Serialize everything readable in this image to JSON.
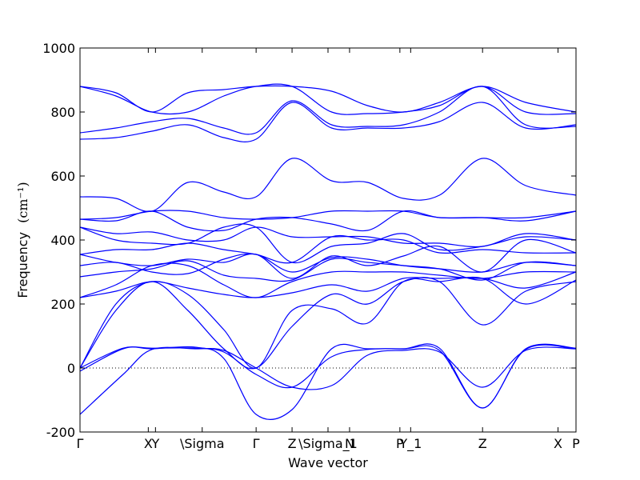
{
  "chart_data": {
    "type": "line",
    "title": "",
    "xlabel": "Wave vector",
    "ylabel": "Frequency",
    "ylabel_unit": "(cm⁻¹)",
    "ylim": [
      -200,
      1000
    ],
    "yticks": [
      -200,
      0,
      200,
      400,
      600,
      800,
      1000
    ],
    "xlim": [
      0,
      6.9
    ],
    "xticks": [
      {
        "pos": 0.0,
        "label": "Γ"
      },
      {
        "pos": 0.95,
        "label": "X"
      },
      {
        "pos": 1.05,
        "label": "Y"
      },
      {
        "pos": 1.7,
        "label": "\\Sigma"
      },
      {
        "pos": 2.45,
        "label": "Γ"
      },
      {
        "pos": 2.95,
        "label": "Z"
      },
      {
        "pos": 3.45,
        "label": "\\Sigma_1"
      },
      {
        "pos": 3.75,
        "label": "N"
      },
      {
        "pos": 4.45,
        "label": "P"
      },
      {
        "pos": 4.6,
        "label": "Y_1"
      },
      {
        "pos": 5.6,
        "label": "Z"
      },
      {
        "pos": 6.65,
        "label": "X"
      },
      {
        "pos": 6.9,
        "label": "P"
      }
    ],
    "zero_line": true,
    "grid": false,
    "line_color": "#0000ff",
    "series": [
      {
        "x": [
          0,
          0.6,
          1.0,
          1.6,
          2.0,
          2.45,
          2.95,
          3.5,
          4.0,
          4.5,
          5.0,
          5.6,
          6.2,
          6.9
        ],
        "y": [
          -145,
          -20,
          58,
          60,
          55,
          0,
          -60,
          -55,
          40,
          55,
          50,
          -60,
          55,
          60
        ]
      },
      {
        "x": [
          0,
          0.6,
          1.0,
          1.6,
          2.0,
          2.45,
          2.95,
          3.5,
          4.0,
          4.5,
          5.0,
          5.6,
          6.2,
          6.9
        ],
        "y": [
          -10,
          60,
          62,
          62,
          50,
          -20,
          -60,
          35,
          58,
          60,
          62,
          -125,
          60,
          62
        ]
      },
      {
        "x": [
          0,
          0.6,
          1.0,
          1.6,
          2.0,
          2.45,
          2.95,
          3.5,
          4.0,
          4.5,
          5.0,
          5.6,
          6.2,
          6.9
        ],
        "y": [
          0,
          62,
          60,
          65,
          30,
          -145,
          -130,
          60,
          60,
          60,
          55,
          -125,
          58,
          60
        ]
      },
      {
        "x": [
          0,
          0.5,
          1.0,
          1.5,
          2.0,
          2.45,
          2.95,
          3.5,
          4.0,
          4.5,
          5.0,
          5.6,
          6.2,
          6.9
        ],
        "y": [
          0,
          180,
          270,
          180,
          60,
          0,
          130,
          230,
          200,
          270,
          270,
          135,
          240,
          270
        ]
      },
      {
        "x": [
          0,
          0.5,
          1.0,
          1.5,
          2.0,
          2.45,
          2.95,
          3.5,
          4.0,
          4.5,
          5.0,
          5.6,
          6.2,
          6.9
        ],
        "y": [
          0,
          200,
          270,
          230,
          120,
          0,
          180,
          185,
          140,
          270,
          270,
          280,
          200,
          275
        ]
      },
      {
        "x": [
          0,
          0.5,
          1.0,
          1.5,
          2.0,
          2.45,
          2.95,
          3.5,
          4.0,
          4.5,
          5.0,
          5.6,
          6.2,
          6.9
        ],
        "y": [
          220,
          240,
          270,
          250,
          230,
          220,
          235,
          260,
          240,
          280,
          280,
          280,
          250,
          300
        ]
      },
      {
        "x": [
          0,
          0.5,
          1.0,
          1.5,
          2.0,
          2.45,
          2.95,
          3.5,
          4.0,
          4.5,
          5.0,
          5.6,
          6.2,
          6.9
        ],
        "y": [
          220,
          260,
          320,
          320,
          260,
          220,
          270,
          300,
          300,
          300,
          290,
          280,
          300,
          300
        ]
      },
      {
        "x": [
          0,
          0.5,
          1.0,
          1.5,
          2.0,
          2.45,
          2.95,
          3.5,
          4.0,
          4.5,
          5.0,
          5.6,
          6.2,
          6.9
        ],
        "y": [
          285,
          300,
          310,
          335,
          290,
          280,
          275,
          340,
          330,
          320,
          310,
          275,
          330,
          320
        ]
      },
      {
        "x": [
          0,
          0.5,
          1.0,
          1.5,
          2.0,
          2.45,
          2.95,
          3.5,
          4.0,
          4.5,
          5.0,
          5.6,
          6.2,
          6.9
        ],
        "y": [
          320,
          330,
          300,
          295,
          340,
          355,
          300,
          345,
          340,
          320,
          310,
          300,
          330,
          320
        ]
      },
      {
        "x": [
          0,
          0.5,
          1.0,
          1.5,
          2.0,
          2.45,
          2.95,
          3.5,
          4.0,
          4.5,
          5.0,
          5.6,
          6.2,
          6.9
        ],
        "y": [
          355,
          330,
          320,
          340,
          330,
          355,
          280,
          350,
          320,
          350,
          380,
          300,
          400,
          360
        ]
      },
      {
        "x": [
          0,
          0.5,
          1.0,
          1.5,
          2.0,
          2.45,
          2.95,
          3.5,
          4.0,
          4.5,
          5.0,
          5.6,
          6.2,
          6.9
        ],
        "y": [
          355,
          370,
          370,
          390,
          370,
          355,
          330,
          410,
          400,
          400,
          360,
          370,
          360,
          360
        ]
      },
      {
        "x": [
          0,
          0.5,
          1.0,
          1.5,
          2.0,
          2.45,
          2.95,
          3.5,
          4.0,
          4.5,
          5.0,
          5.6,
          6.2,
          6.9
        ],
        "y": [
          440,
          400,
          390,
          390,
          440,
          440,
          330,
          380,
          390,
          420,
          370,
          380,
          410,
          400
        ]
      },
      {
        "x": [
          0,
          0.5,
          1.0,
          1.5,
          2.0,
          2.45,
          2.95,
          3.5,
          4.0,
          4.5,
          5.0,
          5.6,
          6.2,
          6.9
        ],
        "y": [
          440,
          420,
          425,
          400,
          400,
          440,
          410,
          410,
          410,
          390,
          390,
          380,
          420,
          400
        ]
      },
      {
        "x": [
          0,
          0.5,
          1.0,
          1.5,
          2.0,
          2.45,
          2.95,
          3.5,
          4.0,
          4.5,
          5.0,
          5.6,
          6.2,
          6.9
        ],
        "y": [
          465,
          460,
          490,
          440,
          430,
          465,
          470,
          450,
          430,
          490,
          470,
          470,
          460,
          490
        ]
      },
      {
        "x": [
          0,
          0.5,
          1.0,
          1.5,
          2.0,
          2.45,
          2.95,
          3.5,
          4.0,
          4.5,
          5.0,
          5.6,
          6.2,
          6.9
        ],
        "y": [
          465,
          470,
          490,
          490,
          470,
          465,
          470,
          490,
          490,
          490,
          470,
          470,
          470,
          490
        ]
      },
      {
        "x": [
          0,
          0.5,
          1.0,
          1.5,
          2.0,
          2.45,
          2.95,
          3.5,
          4.0,
          4.5,
          5.0,
          5.6,
          6.2,
          6.9
        ],
        "y": [
          535,
          530,
          490,
          580,
          550,
          535,
          655,
          585,
          580,
          530,
          540,
          655,
          570,
          540
        ]
      },
      {
        "x": [
          0,
          0.5,
          1.0,
          1.5,
          2.0,
          2.45,
          2.95,
          3.5,
          4.0,
          4.5,
          5.0,
          5.6,
          6.2,
          6.9
        ],
        "y": [
          715,
          720,
          740,
          760,
          720,
          715,
          830,
          750,
          750,
          750,
          770,
          830,
          750,
          760
        ]
      },
      {
        "x": [
          0,
          0.5,
          1.0,
          1.5,
          2.0,
          2.45,
          2.95,
          3.5,
          4.0,
          4.5,
          5.0,
          5.6,
          6.2,
          6.9
        ],
        "y": [
          735,
          750,
          770,
          780,
          750,
          735,
          835,
          760,
          755,
          760,
          800,
          880,
          760,
          755
        ]
      },
      {
        "x": [
          0,
          0.5,
          1.0,
          1.5,
          2.0,
          2.45,
          2.95,
          3.5,
          4.0,
          4.5,
          5.0,
          5.6,
          6.2,
          6.9
        ],
        "y": [
          880,
          850,
          800,
          800,
          850,
          880,
          880,
          800,
          795,
          800,
          820,
          880,
          800,
          795
        ]
      },
      {
        "x": [
          0,
          0.5,
          1.0,
          1.5,
          2.0,
          2.45,
          2.95,
          3.5,
          4.0,
          4.5,
          5.0,
          5.6,
          6.2,
          6.9
        ],
        "y": [
          880,
          860,
          800,
          860,
          870,
          880,
          880,
          865,
          820,
          800,
          830,
          880,
          830,
          800
        ]
      }
    ]
  }
}
